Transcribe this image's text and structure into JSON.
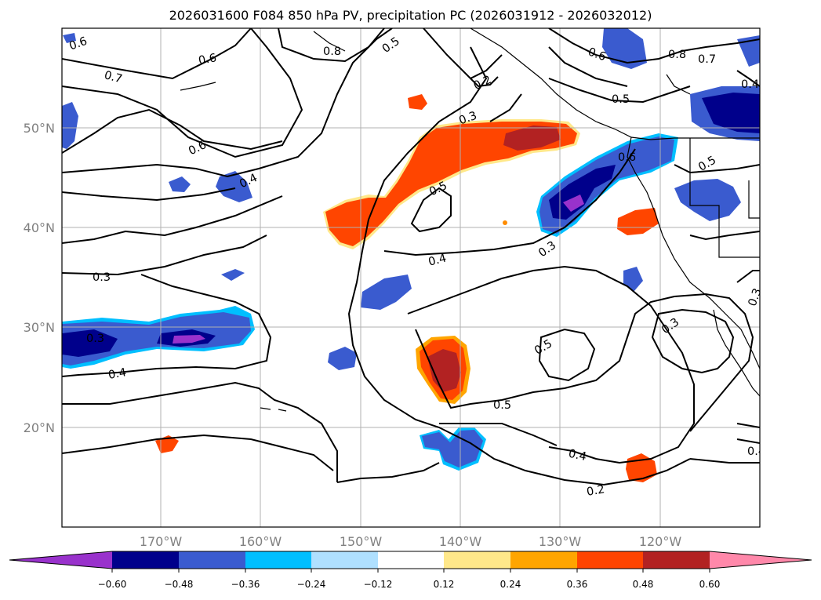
{
  "title": "2026031600 F084 850 hPa PV, precipitation PC (2026031912 - 2026032012)",
  "map": {
    "lat_labels": [
      "50°N",
      "40°N",
      "30°N",
      "20°N"
    ],
    "lon_labels": [
      "170°W",
      "160°W",
      "150°W",
      "140°W",
      "130°W",
      "120°W"
    ],
    "contour_labels": [
      "0.6",
      "0.6",
      "0.7",
      "0.5",
      "0.8",
      "0.7",
      "0.6",
      "0.8",
      "0.2",
      "0.3",
      "0.5",
      "0.6",
      "0.4",
      "0.5",
      "0.6",
      "0.5",
      "0.3",
      "0.4",
      "0.3",
      "0.3",
      "0.4",
      "0.5",
      "0.5",
      "0.3",
      "0.4",
      "0.4",
      "0.2",
      "0.3",
      "0.4"
    ],
    "colors": {
      "land_outline": "#000000",
      "grid": "#b0b0b0"
    }
  },
  "colorbar": {
    "tick_labels": [
      "−0.60",
      "−0.48",
      "−0.36",
      "−0.24",
      "−0.12",
      "0.12",
      "0.24",
      "0.36",
      "0.48",
      "0.60"
    ],
    "bins": [
      {
        "color": "#9932cc"
      },
      {
        "color": "#00008b"
      },
      {
        "color": "#3a5bcf"
      },
      {
        "color": "#00bfff"
      },
      {
        "color": "#afe0ff"
      },
      {
        "color": "#ffffff"
      },
      {
        "color": "#ffe88a"
      },
      {
        "color": "#ffa500"
      },
      {
        "color": "#ff4500"
      },
      {
        "color": "#b22222"
      },
      {
        "color": "#ff88aa"
      }
    ]
  }
}
